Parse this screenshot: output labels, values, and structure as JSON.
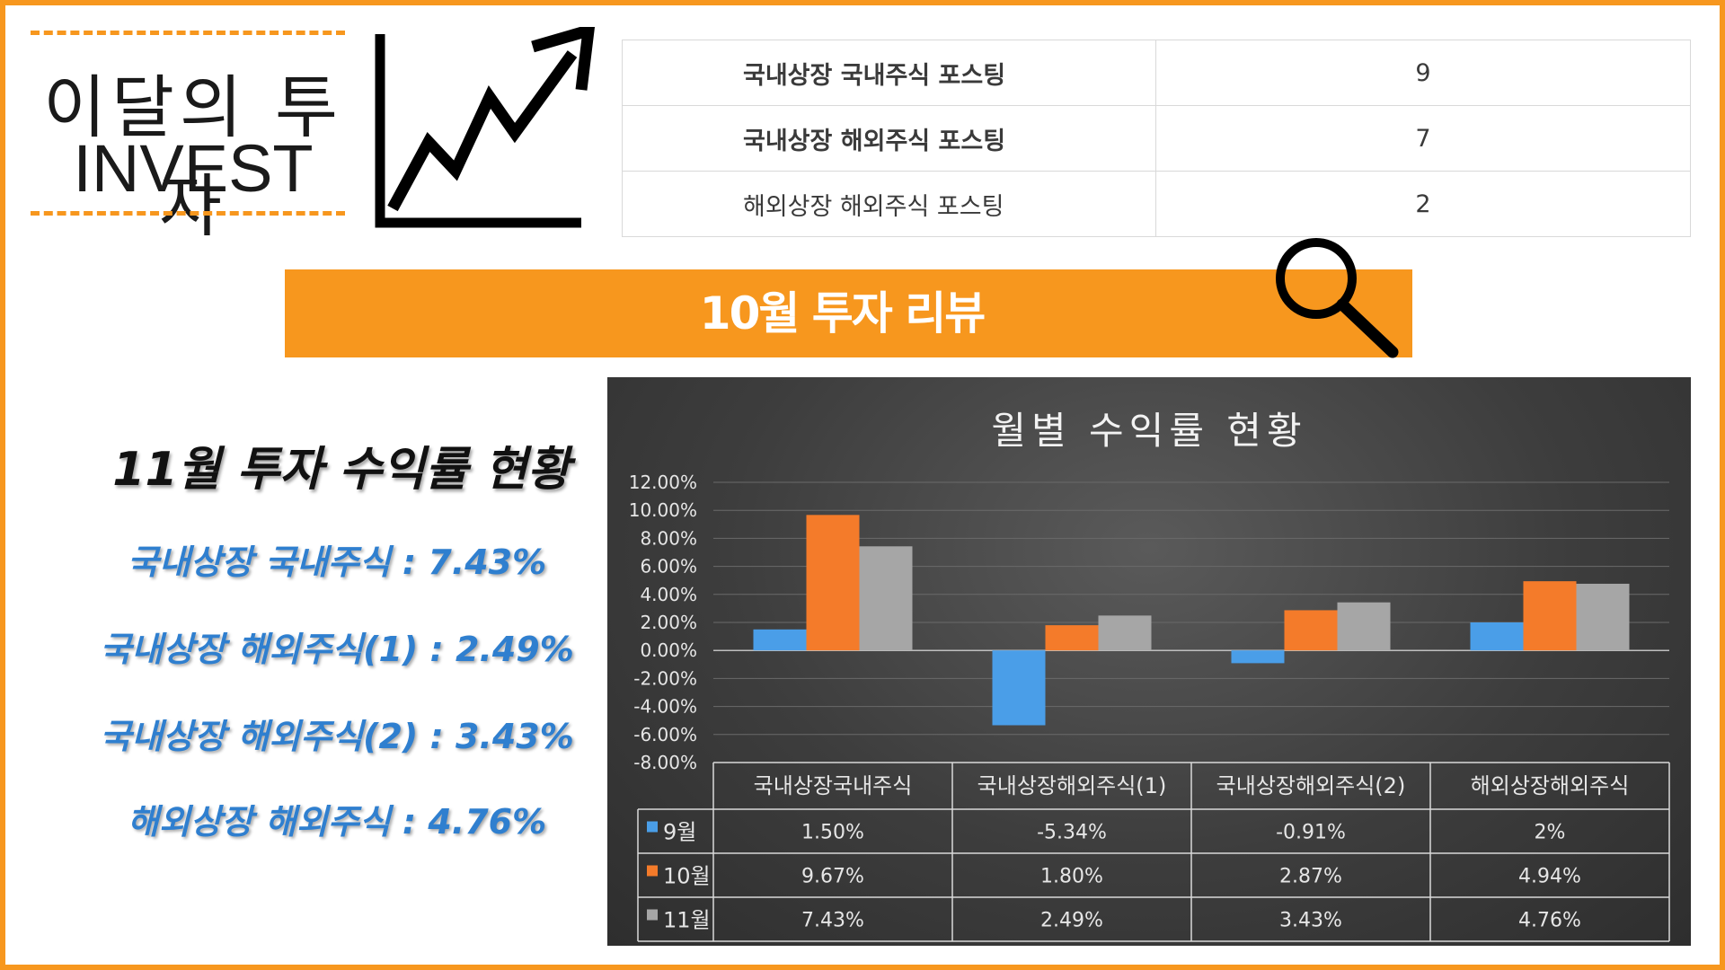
{
  "logo": {
    "line1": "이달의 투자",
    "line2": "INVEST"
  },
  "summary_table": [
    {
      "label": "국내상장 국내주식 포스팅",
      "value": "9"
    },
    {
      "label": "국내상장 해외주식 포스팅",
      "value": "7"
    },
    {
      "label": "해외상장 해외주식 포스팅",
      "value": "2"
    }
  ],
  "banner": {
    "title": "10월 투자 리뷰"
  },
  "returns": {
    "title": "11월 투자 수익률 현황",
    "items": [
      "국내상장  국내주식 : 7.43%",
      "국내상장 해외주식(1) : 2.49%",
      "국내상장 해외주식(2) : 3.43%",
      "해외상장 해외주식 : 4.76%"
    ]
  },
  "colors": {
    "accent": "#f7971e",
    "series_9": "#4a9ee8",
    "series_10": "#f47b2a",
    "series_11": "#a6a6a6",
    "returns_text": "#2f7fcf"
  },
  "icons": [
    "trend-up-arrow-icon",
    "magnifier-icon"
  ],
  "chart_data": {
    "type": "bar",
    "title": "월별 수익률 현황",
    "categories": [
      "국내상장국내주식",
      "국내상장해외주식(1)",
      "국내상장해외주식(2)",
      "해외상장해외주식"
    ],
    "series": [
      {
        "name": "9월",
        "values": [
          1.5,
          -5.34,
          -0.91,
          2.0
        ],
        "labels": [
          "1.50%",
          "-5.34%",
          "-0.91%",
          "2%"
        ]
      },
      {
        "name": "10월",
        "values": [
          9.67,
          1.8,
          2.87,
          4.94
        ],
        "labels": [
          "9.67%",
          "1.80%",
          "2.87%",
          "4.94%"
        ]
      },
      {
        "name": "11월",
        "values": [
          7.43,
          2.49,
          3.43,
          4.76
        ],
        "labels": [
          "7.43%",
          "2.49%",
          "3.43%",
          "4.76%"
        ]
      }
    ],
    "ylim": [
      -8,
      12
    ],
    "yticks": [
      "12.00%",
      "10.00%",
      "8.00%",
      "6.00%",
      "4.00%",
      "2.00%",
      "0.00%",
      "-2.00%",
      "-4.00%",
      "-6.00%",
      "-8.00%"
    ],
    "grid": true,
    "legend": "data-table-below"
  }
}
